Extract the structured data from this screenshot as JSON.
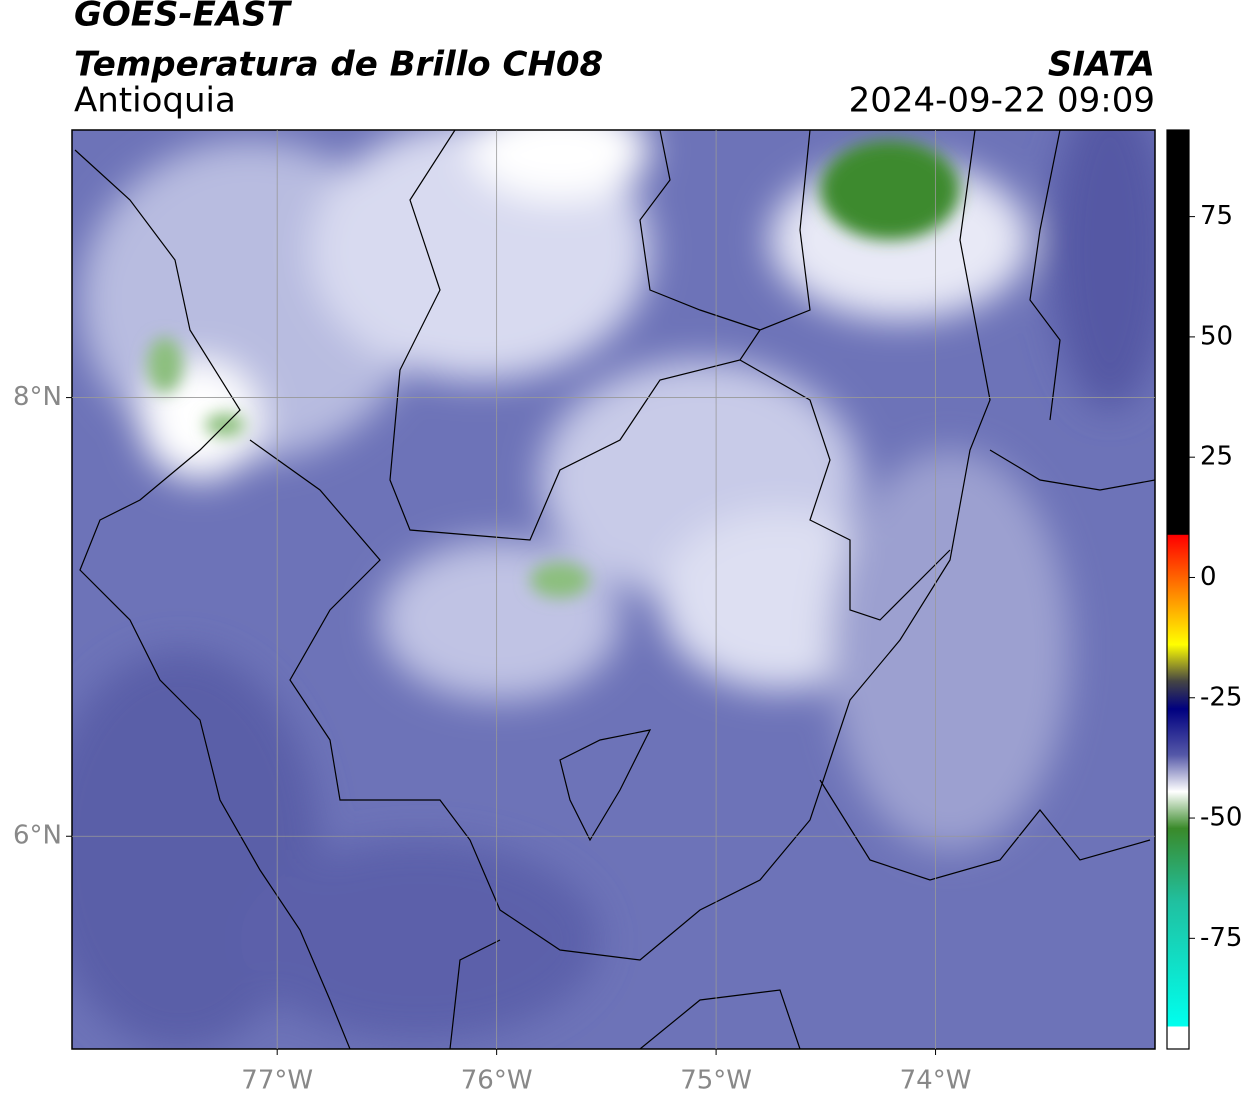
{
  "header": {
    "satellite": "GOES-EAST",
    "product": "Temperatura de Brillo CH08",
    "region": "Antioquia",
    "source": "SIATA",
    "datetime": "2024-09-22 09:09"
  },
  "map": {
    "xlim": [
      -77.935,
      -73.0
    ],
    "ylim": [
      5.03,
      9.22
    ],
    "xticks": [
      {
        "value": -77,
        "label": "77°W"
      },
      {
        "value": -76,
        "label": "76°W"
      },
      {
        "value": -75,
        "label": "75°W"
      },
      {
        "value": -74,
        "label": "74°W"
      }
    ],
    "yticks": [
      {
        "value": 8,
        "label": "8°N"
      },
      {
        "value": 6,
        "label": "6°N"
      }
    ],
    "grid": true
  },
  "colorbar": {
    "lim": [
      -98,
      93
    ],
    "ticks": [
      75,
      50,
      25,
      0,
      -25,
      -50,
      -75
    ]
  }
}
